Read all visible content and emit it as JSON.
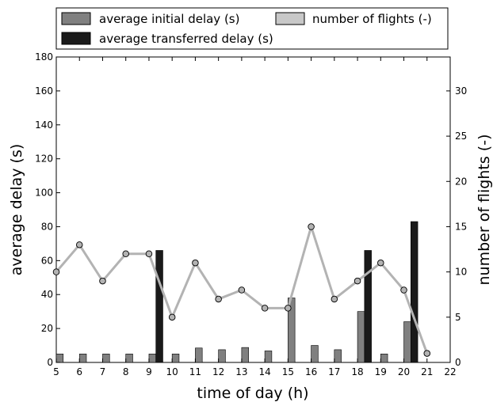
{
  "chart_data": {
    "type": "bar",
    "xlabel": "time of day (h)",
    "ylabel": "average delay (s)",
    "y2label": "number of flights (-)",
    "xlim": [
      5,
      22
    ],
    "ylim": [
      0,
      180
    ],
    "y2lim": [
      0,
      33.75
    ],
    "xticks": [
      "5",
      "6",
      "7",
      "8",
      "9",
      "10",
      "11",
      "12",
      "13",
      "14",
      "15",
      "16",
      "17",
      "18",
      "19",
      "20",
      "21",
      "22"
    ],
    "yticks": [
      "0",
      "20",
      "40",
      "60",
      "80",
      "100",
      "120",
      "140",
      "160",
      "180"
    ],
    "y2ticks": [
      "0",
      "5",
      "10",
      "15",
      "20",
      "25",
      "30"
    ],
    "grid": false,
    "legend_position": "top",
    "legend": {
      "initial": "average initial delay (s)",
      "flights": "number of flights (-)",
      "transferred": "average transferred delay (s)"
    },
    "colors": {
      "initial": "#808080",
      "transferred": "#1a1a1a",
      "flights_line": "#b3b3b3",
      "flights_marker": "#b3b3b3",
      "legend_flights_patch": "#c8c8c8"
    },
    "series": [
      {
        "name": "average initial delay (s)",
        "kind": "bar",
        "x": [
          5,
          6,
          7,
          8,
          9,
          10,
          11,
          12,
          13,
          14,
          15,
          16,
          17,
          18,
          19,
          20
        ],
        "values": [
          5,
          5,
          5,
          5,
          5,
          5,
          8.5,
          7.5,
          8.8,
          6.8,
          38,
          10,
          7.5,
          30,
          5,
          24
        ]
      },
      {
        "name": "average transferred delay (s)",
        "kind": "bar",
        "x": [
          9,
          18,
          20
        ],
        "values": [
          66,
          66,
          83
        ]
      },
      {
        "name": "number of flights (-)",
        "kind": "line",
        "x": [
          5,
          6,
          7,
          8,
          9,
          10,
          11,
          12,
          13,
          14,
          15,
          16,
          17,
          18,
          19,
          20,
          21
        ],
        "values": [
          10,
          13,
          9,
          12,
          12,
          5,
          11,
          7,
          8,
          6,
          6,
          15,
          7,
          9,
          11,
          8,
          1
        ]
      }
    ]
  }
}
